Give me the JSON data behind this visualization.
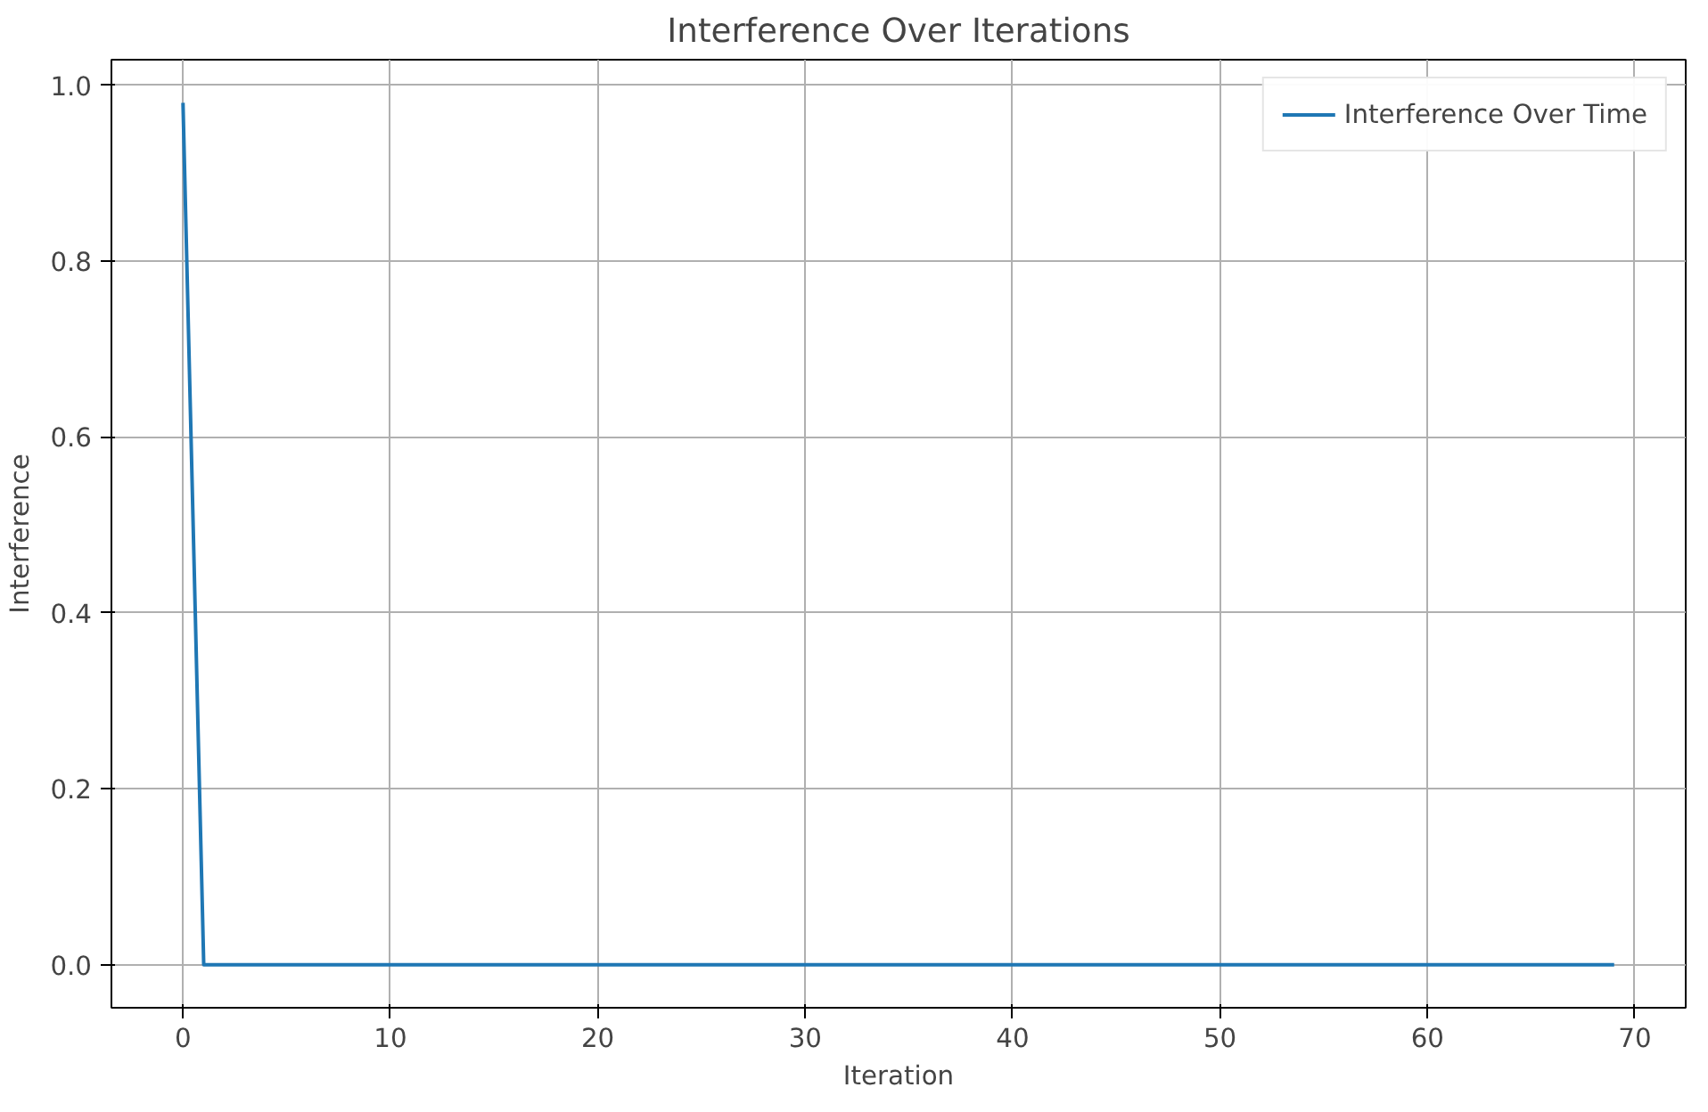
{
  "chart_data": {
    "type": "line",
    "title": "Interference Over Iterations",
    "xlabel": "Iteration",
    "ylabel": "Interference",
    "x": [
      0,
      1,
      69
    ],
    "series": [
      {
        "name": "Interference Over Time",
        "color": "#1f77b4",
        "values": [
          0.98,
          0,
          0
        ]
      }
    ],
    "xlim": [
      -3.45,
      72.45
    ],
    "ylim": [
      -0.049,
      1.029
    ],
    "xticks": [
      0,
      10,
      20,
      30,
      40,
      50,
      60,
      70
    ],
    "yticks": [
      {
        "value": 0,
        "label": "0.0"
      },
      {
        "value": 0.2,
        "label": "0.2"
      },
      {
        "value": 0.4,
        "label": "0.4"
      },
      {
        "value": 0.6,
        "label": "0.6"
      },
      {
        "value": 0.8,
        "label": "0.8"
      },
      {
        "value": 1.0,
        "label": "1.0"
      }
    ],
    "grid": true,
    "legend": "top right",
    "line_style": "solid",
    "marker": "none"
  }
}
